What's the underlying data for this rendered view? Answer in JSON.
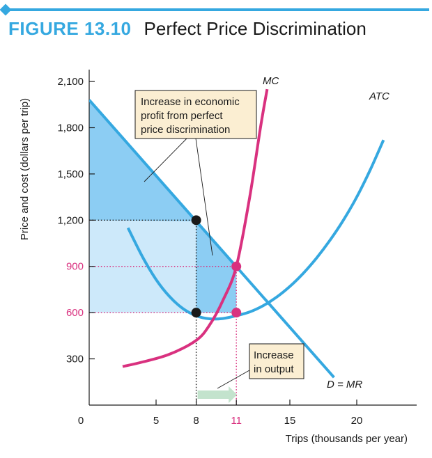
{
  "figure": {
    "label": "FIGURE 13.10",
    "title": "Perfect Price Discrimination"
  },
  "colors": {
    "accent": "#35a8e0",
    "mc": "#d9317f",
    "surplus": "#8ccdf3",
    "profit_area": "#cde9fa",
    "arrow": "#c3e3cd",
    "callout_bg": "#fbeed2",
    "dot": "#1a1a1a"
  },
  "chart_data": {
    "type": "line",
    "title": "Perfect Price Discrimination",
    "xlabel": "Trips (thousands per year)",
    "ylabel": "Price and cost (dollars per trip)",
    "xlim": [
      0,
      25
    ],
    "ylim": [
      0,
      2200
    ],
    "x_ticks": [
      {
        "value": 0,
        "label": "0",
        "highlight": false
      },
      {
        "value": 5,
        "label": "5",
        "highlight": false
      },
      {
        "value": 8,
        "label": "8",
        "highlight": false
      },
      {
        "value": 11,
        "label": "11",
        "highlight": true
      },
      {
        "value": 15,
        "label": "15",
        "highlight": false
      },
      {
        "value": 20,
        "label": "20",
        "highlight": false
      }
    ],
    "y_ticks": [
      {
        "value": 300,
        "label": "300",
        "highlight": false
      },
      {
        "value": 600,
        "label": "600",
        "highlight": true
      },
      {
        "value": 900,
        "label": "900",
        "highlight": true
      },
      {
        "value": 1200,
        "label": "1,200",
        "highlight": false
      },
      {
        "value": 1500,
        "label": "1,500",
        "highlight": false
      },
      {
        "value": 1800,
        "label": "1,800",
        "highlight": false
      },
      {
        "value": 2100,
        "label": "2,100",
        "highlight": false
      }
    ],
    "series": [
      {
        "name": "D = MR",
        "x": [
          0,
          18.3
        ],
        "y": [
          1980,
          180
        ]
      },
      {
        "name": "MC",
        "x": [
          2.5,
          4,
          6,
          8,
          9,
          10,
          11,
          12,
          12.8,
          13.3
        ],
        "y": [
          250,
          280,
          330,
          420,
          520,
          680,
          900,
          1350,
          1800,
          2050
        ]
      },
      {
        "name": "ATC",
        "x": [
          2.9,
          4,
          5,
          6,
          7,
          8,
          9,
          10,
          11,
          12,
          13,
          14,
          15,
          16,
          17,
          18,
          19,
          20,
          21,
          22
        ],
        "y": [
          1150,
          960,
          815,
          705,
          627,
          580,
          560,
          562,
          580,
          605,
          645,
          700,
          770,
          855,
          955,
          1070,
          1200,
          1350,
          1525,
          1720
        ]
      }
    ],
    "points": [
      {
        "x": 8,
        "y": 1200,
        "color": "dark"
      },
      {
        "x": 8,
        "y": 600,
        "color": "dark"
      },
      {
        "x": 11,
        "y": 900,
        "color": "mc"
      },
      {
        "x": 11,
        "y": 600,
        "color": "mc"
      }
    ],
    "annotations": {
      "profit_callout": [
        "Increase in economic",
        "profit from perfect",
        "price discrimination"
      ],
      "output_callout": [
        "Increase",
        "in output"
      ],
      "mc_label": "MC",
      "atc_label": "ATC",
      "demand_label": "D = MR"
    },
    "output_arrow": {
      "from": 8,
      "to": 11
    },
    "grid": false
  }
}
